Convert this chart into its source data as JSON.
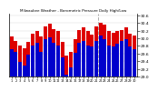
{
  "title": "Milwaukee Weather - Barometric Pressure Daily High/Low",
  "days": [
    "1",
    "2",
    "3",
    "4",
    "5",
    "6",
    "7",
    "8",
    "9",
    "10",
    "11",
    "12",
    "13",
    "14",
    "15",
    "16",
    "17",
    "18",
    "19",
    "20",
    "21",
    "22",
    "23",
    "24",
    "25",
    "26",
    "27",
    "28",
    "29",
    "30"
  ],
  "highs": [
    30.05,
    29.92,
    29.8,
    29.75,
    29.9,
    30.12,
    30.18,
    30.05,
    30.32,
    30.38,
    30.25,
    30.18,
    29.9,
    29.55,
    29.65,
    29.98,
    30.22,
    30.28,
    30.18,
    30.1,
    30.3,
    30.4,
    30.35,
    30.2,
    30.15,
    30.18,
    30.22,
    30.28,
    30.12,
    30.08
  ],
  "lows": [
    29.72,
    29.65,
    29.38,
    29.3,
    29.58,
    29.82,
    29.88,
    29.65,
    29.98,
    30.02,
    29.88,
    29.8,
    29.5,
    29.05,
    29.25,
    29.62,
    29.88,
    29.92,
    29.82,
    29.78,
    29.92,
    30.08,
    29.98,
    29.8,
    29.78,
    29.85,
    29.92,
    29.98,
    29.78,
    29.72
  ],
  "high_color": "#dd0000",
  "low_color": "#0000cc",
  "ylim_min": 29.0,
  "ylim_max": 30.65,
  "yticks": [
    29.0,
    29.2,
    29.4,
    29.6,
    29.8,
    30.0,
    30.2,
    30.4,
    30.6
  ],
  "ytick_labels": [
    "29",
    "29.2",
    "29.4",
    "29.6",
    "29.8",
    "30",
    "30.2",
    "30.4",
    "30.6"
  ],
  "vline_pos": 20.5,
  "bg_color": "#ffffff",
  "bar_width": 0.85,
  "dashed_line_color": "#aaaaaa"
}
